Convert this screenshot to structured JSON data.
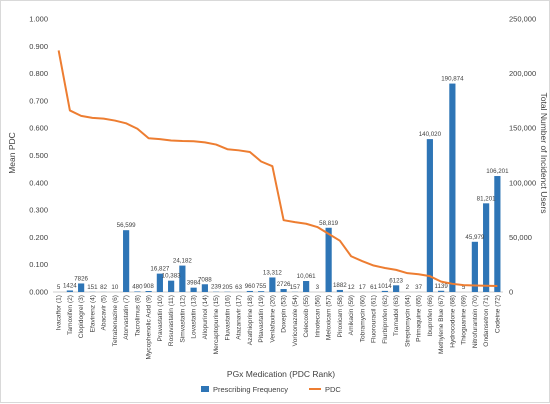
{
  "chart_data": {
    "type": "bar",
    "xlabel": "PGx Medication (PDC Rank)",
    "ylabel_left": "Mean PDC",
    "ylabel_right": "Total Number of Incidenct Users",
    "ylim_left": [
      0,
      1
    ],
    "ylim_right": [
      0,
      250000
    ],
    "left_ticks": [
      "0.000",
      "0.100",
      "0.200",
      "0.300",
      "0.400",
      "0.500",
      "0.600",
      "0.700",
      "0.800",
      "0.900",
      "1.000"
    ],
    "right_ticks": [
      "0",
      "50,000",
      "100,000",
      "150,000",
      "200,000",
      "250,000"
    ],
    "gridlines": false,
    "legend_position": "bottom",
    "categories": [
      "Ivacaftor (1)",
      "Tamoxifen (2)",
      "Clopidogrel (3)",
      "Efavirenz (4)",
      "Abacavir (5)",
      "Tetrabenazine (6)",
      "Atorvastatin (7)",
      "Tacrolimus (8)",
      "Mycophenolic Acid (9)",
      "Pravastatin (10)",
      "Rosuvastatin (11)",
      "Simvastatin (12)",
      "Lovastatin (13)",
      "Allopurinol (14)",
      "Mercaptopurine (15)",
      "Fluvastatin (16)",
      "Atazanavir (17)",
      "Azathioprine (18)",
      "Pitavastatin (19)",
      "Venlafaxine (20)",
      "Doxepin (53)",
      "Voriconazole (54)",
      "Celecoxib (55)",
      "Irinotecan (56)",
      "Meloxicam (57)",
      "Piroxicam (58)",
      "Amikacin (59)",
      "Tobramycin (60)",
      "Fluorouracil (61)",
      "Flurbiprofen (62)",
      "Tramadol (63)",
      "Streptomycin (64)",
      "Primaquine (65)",
      "Ibuprofen (66)",
      "Methylene Blue (67)",
      "Hydrocodone (68)",
      "Thioguanine (69)",
      "Nitrofurantoin (70)",
      "Ondansetron (71)",
      "Codeine (72)"
    ],
    "series": [
      {
        "name": "Prescribing Frequency",
        "axis": "right",
        "color": "#2e75b6",
        "values": [
          5,
          1424,
          7826,
          151,
          82,
          10,
          56599,
          480,
          908,
          16827,
          10383,
          24182,
          3984,
          7088,
          239,
          205,
          63,
          960,
          755,
          13312,
          2726,
          157,
          10061,
          3,
          58819,
          1882,
          12,
          17,
          61,
          1014,
          6123,
          2,
          37,
          140020,
          1139,
          190874,
          5,
          45979,
          81201,
          106201
        ],
        "labels": [
          "5",
          "1424",
          "7826",
          "151",
          "82",
          "10",
          "56,599",
          "480",
          "908",
          "16,827",
          "10,383",
          "24,182",
          "3984",
          "7088",
          "239",
          "205",
          "63",
          "960",
          "755",
          "13,312",
          "2726",
          "157",
          "10,061",
          "3",
          "58,819",
          "1882",
          "12",
          "17",
          "61",
          "1014",
          "6123",
          "2",
          "37",
          "140,020",
          "1139",
          "190,874",
          "5",
          "45,979",
          "81,201",
          "106,201"
        ]
      },
      {
        "name": "PDC",
        "axis": "left",
        "type": "line",
        "color": "#ed7d31",
        "values": [
          0.885,
          0.665,
          0.645,
          0.638,
          0.635,
          0.628,
          0.618,
          0.598,
          0.563,
          0.56,
          0.555,
          0.553,
          0.552,
          0.548,
          0.54,
          0.523,
          0.519,
          0.513,
          0.478,
          0.461,
          0.263,
          0.256,
          0.25,
          0.238,
          0.213,
          0.188,
          0.131,
          0.113,
          0.097,
          0.088,
          0.081,
          0.069,
          0.065,
          0.058,
          0.038,
          0.03,
          0.025,
          0.024,
          0.023,
          0.022
        ]
      }
    ]
  }
}
